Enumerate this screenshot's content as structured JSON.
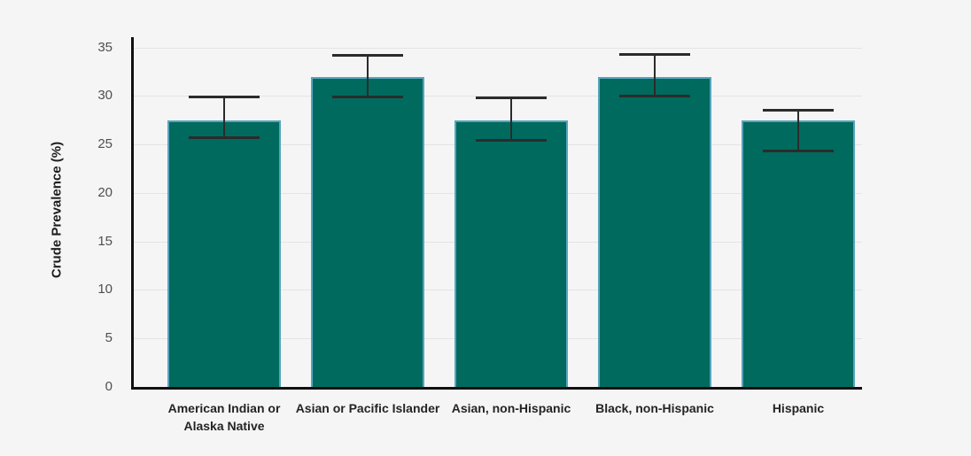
{
  "chart_data": {
    "type": "bar",
    "title": "",
    "xlabel": "",
    "ylabel": "Crude Prevalence (%)",
    "ylim": [
      0,
      35
    ],
    "yticks": [
      0,
      5,
      10,
      15,
      20,
      25,
      30,
      35
    ],
    "grid": true,
    "legend": false,
    "categories": [
      "American Indian or Alaska Native",
      "Asian or Pacific Islander",
      "Asian, non-Hispanic",
      "Black, non-Hispanic",
      "Hispanic"
    ],
    "values": [
      27.5,
      31.9,
      27.5,
      31.9,
      27.5
    ],
    "error_low": [
      25.7,
      29.9,
      25.5,
      30.0,
      24.4
    ],
    "error_high": [
      29.9,
      34.2,
      29.8,
      34.3,
      28.6
    ],
    "colors": {
      "bar_fill": "#006A5E",
      "bar_border": "#57A4BC",
      "error_bar": "#2b2b2b",
      "gridline": "#e4e4e4",
      "axis": "#101010",
      "tick_text": "#4f4f4f",
      "category_text": "#242424",
      "axis_title_text": "#1d1d1d",
      "background": "#f5f5f5"
    }
  }
}
